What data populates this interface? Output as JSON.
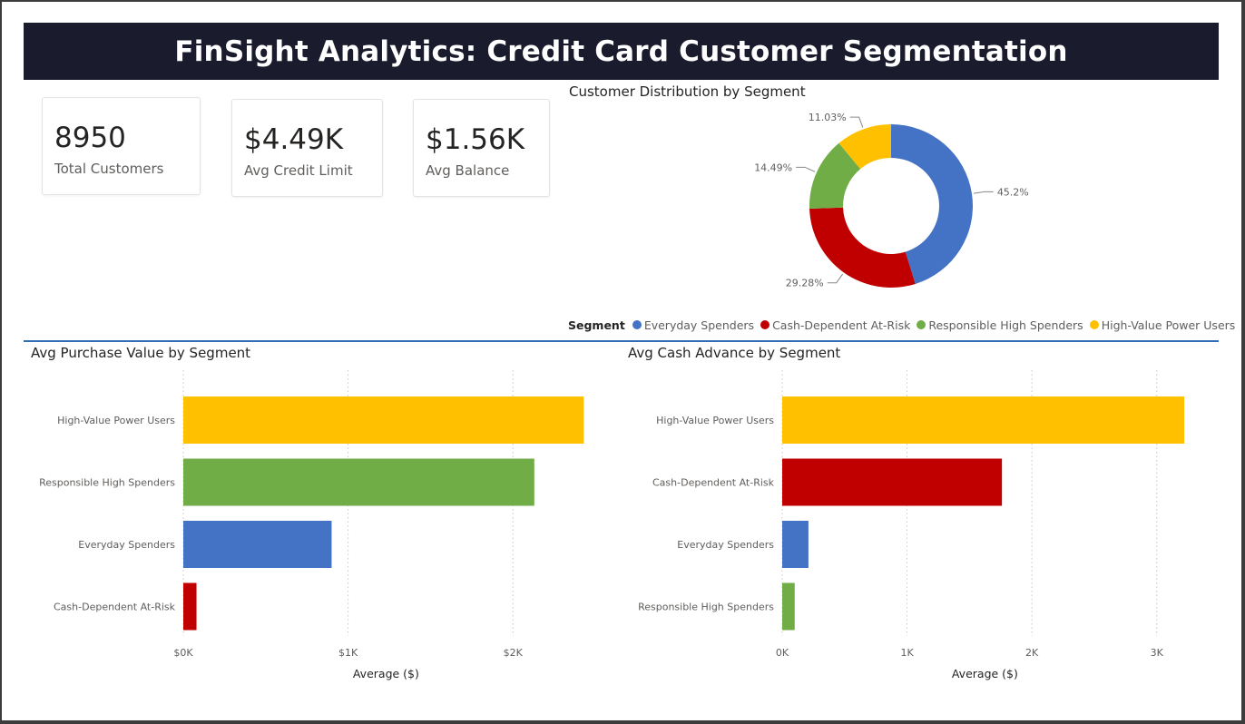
{
  "header": {
    "title": "FinSight Analytics: Credit Card Customer Segmentation"
  },
  "kpis": [
    {
      "value": "8950",
      "label": "Total Customers"
    },
    {
      "value": "$4.49K",
      "label": "Avg Credit Limit"
    },
    {
      "value": "$1.56K",
      "label": "Avg Balance"
    }
  ],
  "colors": {
    "everyday": "#4472c4",
    "cash": "#c00000",
    "responsible": "#70ad47",
    "highvalue": "#ffc000"
  },
  "donut": {
    "title": "Customer Distribution by Segment",
    "legend_title": "Segment",
    "legend": [
      {
        "name": "Everyday Spenders",
        "color": "#4472c4"
      },
      {
        "name": "Cash-Dependent At-Risk",
        "color": "#c00000"
      },
      {
        "name": "Responsible High Spenders",
        "color": "#70ad47"
      },
      {
        "name": "High-Value Power Users",
        "color": "#ffc000"
      }
    ]
  },
  "bar1": {
    "title": "Avg Purchase Value by Segment"
  },
  "bar2": {
    "title": "Avg Cash Advance by Segment"
  },
  "chart_data": [
    {
      "type": "pie",
      "title": "Customer Distribution by Segment",
      "categories": [
        "Everyday Spenders",
        "Cash-Dependent At-Risk",
        "Responsible High Spenders",
        "High-Value Power Users"
      ],
      "values": [
        45.2,
        29.28,
        14.49,
        11.03
      ],
      "data_labels": [
        "45.2%",
        "29.28%",
        "14.49%",
        "11.03%"
      ],
      "legend_placement": "bottom"
    },
    {
      "type": "bar",
      "orientation": "horizontal",
      "title": "Avg Purchase Value by Segment",
      "categories": [
        "High-Value Power Users",
        "Responsible High Spenders",
        "Everyday Spenders",
        "Cash-Dependent At-Risk"
      ],
      "values": [
        2430,
        2130,
        900,
        80
      ],
      "colors": [
        "#ffc000",
        "#70ad47",
        "#4472c4",
        "#c00000"
      ],
      "xlabel": "Average ($)",
      "xlim": [
        0,
        2500
      ],
      "xticks": [
        0,
        1000,
        2000
      ],
      "xtick_labels": [
        "$0K",
        "$1K",
        "$2K"
      ],
      "grid": true
    },
    {
      "type": "bar",
      "orientation": "horizontal",
      "title": "Avg Cash Advance by Segment",
      "categories": [
        "High-Value Power Users",
        "Cash-Dependent At-Risk",
        "Everyday Spenders",
        "Responsible High Spenders"
      ],
      "values": [
        3220,
        1760,
        210,
        100
      ],
      "colors": [
        "#ffc000",
        "#c00000",
        "#4472c4",
        "#70ad47"
      ],
      "xlabel": "Average ($)",
      "xlim": [
        0,
        3300
      ],
      "xticks": [
        0,
        1000,
        2000,
        3000
      ],
      "xtick_labels": [
        "0K",
        "1K",
        "2K",
        "3K"
      ],
      "grid": true
    }
  ]
}
